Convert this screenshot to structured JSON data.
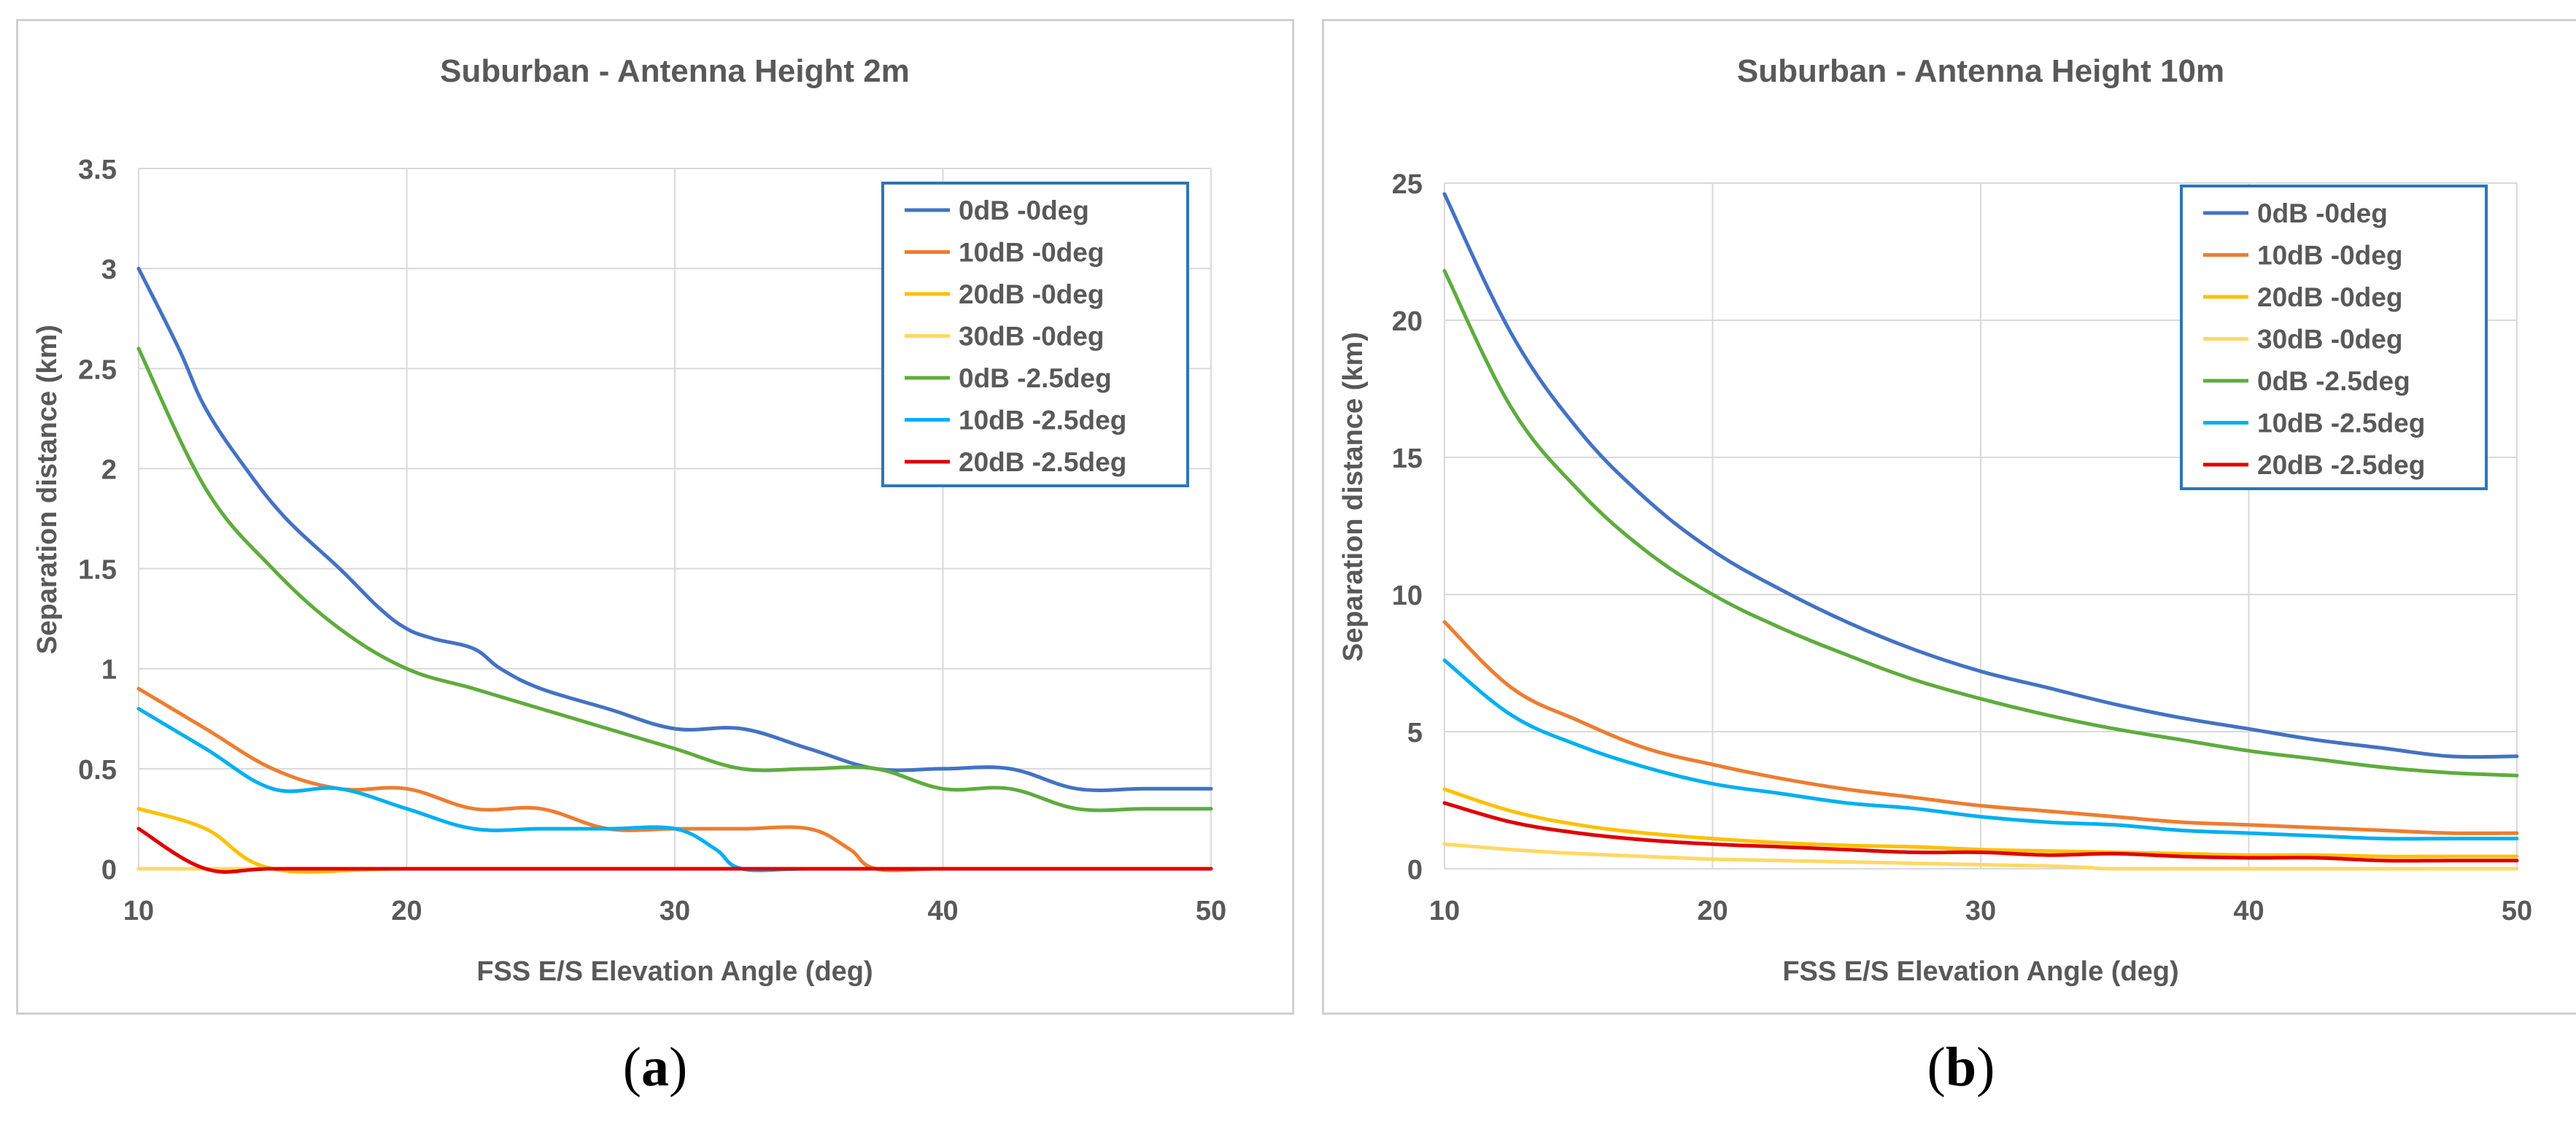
{
  "captions": {
    "a": "a",
    "b": "b"
  },
  "chart_data": [
    {
      "type": "line",
      "title": "Suburban - Antenna Height 2m",
      "xlabel": "FSS E/S Elevation Angle (deg)",
      "ylabel": "Separation distance (km)",
      "xlim": [
        10,
        50
      ],
      "ylim": [
        0,
        3.5
      ],
      "xticks": [
        10,
        20,
        30,
        40,
        50
      ],
      "yticks": [
        0,
        0.5,
        1,
        1.5,
        2,
        2.5,
        3,
        3.5
      ],
      "ytick_labels": [
        "0",
        "0.5",
        "1",
        "1.5",
        "2",
        "2.5",
        "3",
        "3.5"
      ],
      "grid": true,
      "legend_position": "top-right",
      "series": [
        {
          "name": "0dB -0deg",
          "color": "#4472C4",
          "x": [
            10,
            11.5,
            12.5,
            14,
            15.5,
            17.5,
            19,
            20,
            21,
            22.5,
            23.5,
            25,
            27.5,
            30,
            32.5,
            35,
            37.5,
            40,
            42.5,
            45,
            47.5,
            50
          ],
          "y": [
            3.0,
            2.6,
            2.3,
            2.0,
            1.75,
            1.5,
            1.3,
            1.2,
            1.15,
            1.1,
            1.0,
            0.9,
            0.8,
            0.7,
            0.7,
            0.6,
            0.5,
            0.5,
            0.5,
            0.4,
            0.4,
            0.4
          ]
        },
        {
          "name": "10dB -0deg",
          "color": "#ED7D31",
          "x": [
            10,
            12.5,
            15,
            17.5,
            20,
            22.5,
            25,
            27.5,
            30,
            32.5,
            35,
            36.5,
            37.5,
            40,
            45,
            50
          ],
          "y": [
            0.9,
            0.7,
            0.5,
            0.4,
            0.4,
            0.3,
            0.3,
            0.2,
            0.2,
            0.2,
            0.2,
            0.1,
            0.0,
            0.0,
            0.0,
            0.0
          ]
        },
        {
          "name": "20dB -0deg",
          "color": "#FFC000",
          "x": [
            10,
            12.5,
            15,
            20,
            30,
            40,
            50
          ],
          "y": [
            0.3,
            0.2,
            0.0,
            0.0,
            0.0,
            0.0,
            0.0
          ]
        },
        {
          "name": "30dB -0deg",
          "color": "#FFD966",
          "x": [
            10,
            20,
            30,
            40,
            50
          ],
          "y": [
            0.0,
            0.0,
            0.0,
            0.0,
            0.0
          ]
        },
        {
          "name": "0dB -2.5deg",
          "color": "#5EAC3E",
          "x": [
            10,
            12.5,
            15,
            17.5,
            20,
            22.5,
            25,
            27.5,
            30,
            32.5,
            35,
            37.5,
            40,
            42.5,
            45,
            47.5,
            50
          ],
          "y": [
            2.6,
            1.9,
            1.5,
            1.2,
            1.0,
            0.9,
            0.8,
            0.7,
            0.6,
            0.5,
            0.5,
            0.5,
            0.4,
            0.4,
            0.3,
            0.3,
            0.3
          ]
        },
        {
          "name": "10dB -2.5deg",
          "color": "#00B0F0",
          "x": [
            10,
            12.5,
            15,
            17.5,
            20,
            22.5,
            25,
            27.5,
            30,
            31.5,
            32.5,
            35,
            40,
            50
          ],
          "y": [
            0.8,
            0.6,
            0.4,
            0.4,
            0.3,
            0.2,
            0.2,
            0.2,
            0.2,
            0.1,
            0.0,
            0.0,
            0.0,
            0.0
          ]
        },
        {
          "name": "20dB -2.5deg",
          "color": "#E00000",
          "x": [
            10,
            12.5,
            15,
            20,
            30,
            40,
            50
          ],
          "y": [
            0.2,
            0.0,
            0.0,
            0.0,
            0.0,
            0.0,
            0.0
          ]
        }
      ]
    },
    {
      "type": "line",
      "title": "Suburban - Antenna Height 10m",
      "xlabel": "FSS E/S Elevation Angle (deg)",
      "ylabel": "Separation distance (km)",
      "xlim": [
        10,
        50
      ],
      "ylim": [
        0,
        25
      ],
      "xticks": [
        10,
        20,
        30,
        40,
        50
      ],
      "yticks": [
        0,
        5,
        10,
        15,
        20,
        25
      ],
      "ytick_labels": [
        "0",
        "5",
        "10",
        "15",
        "20",
        "25"
      ],
      "grid": true,
      "legend_position": "top-right",
      "series": [
        {
          "name": "0dB -0deg",
          "color": "#4472C4",
          "x": [
            10,
            12.5,
            15,
            17.5,
            20,
            22.5,
            25,
            27.5,
            30,
            32.5,
            35,
            37.5,
            40,
            42.5,
            45,
            47.5,
            50
          ],
          "y": [
            24.6,
            19.5,
            16.0,
            13.5,
            11.6,
            10.2,
            9.0,
            8.0,
            7.2,
            6.6,
            6.0,
            5.5,
            5.1,
            4.7,
            4.4,
            4.1,
            4.1
          ]
        },
        {
          "name": "10dB -0deg",
          "color": "#ED7D31",
          "x": [
            10,
            12.5,
            15,
            17.5,
            20,
            22.5,
            25,
            27.5,
            30,
            32.5,
            35,
            37.5,
            40,
            42.5,
            45,
            47.5,
            50
          ],
          "y": [
            9.0,
            6.6,
            5.4,
            4.4,
            3.8,
            3.3,
            2.9,
            2.6,
            2.3,
            2.1,
            1.9,
            1.7,
            1.6,
            1.5,
            1.4,
            1.3,
            1.3
          ]
        },
        {
          "name": "20dB -0deg",
          "color": "#FFC000",
          "x": [
            10,
            12.5,
            15,
            17.5,
            20,
            22.5,
            25,
            27.5,
            30,
            32.5,
            35,
            37.5,
            40,
            42.5,
            45,
            47.5,
            50
          ],
          "y": [
            2.9,
            2.1,
            1.6,
            1.3,
            1.1,
            0.95,
            0.85,
            0.8,
            0.7,
            0.65,
            0.6,
            0.55,
            0.5,
            0.5,
            0.45,
            0.45,
            0.45
          ]
        },
        {
          "name": "30dB -0deg",
          "color": "#FFD966",
          "x": [
            10,
            12.5,
            15,
            17.5,
            20,
            22.5,
            25,
            27.5,
            30,
            32.5,
            34,
            35,
            40,
            50
          ],
          "y": [
            0.9,
            0.7,
            0.55,
            0.45,
            0.35,
            0.3,
            0.25,
            0.2,
            0.15,
            0.1,
            0.05,
            0.0,
            0.0,
            0.0
          ]
        },
        {
          "name": "0dB -2.5deg",
          "color": "#5EAC3E",
          "x": [
            10,
            12.5,
            15,
            17.5,
            20,
            22.5,
            25,
            27.5,
            30,
            32.5,
            35,
            37.5,
            40,
            42.5,
            45,
            47.5,
            50
          ],
          "y": [
            21.8,
            16.8,
            13.8,
            11.6,
            10.0,
            8.8,
            7.8,
            6.9,
            6.2,
            5.6,
            5.1,
            4.7,
            4.3,
            4.0,
            3.7,
            3.5,
            3.4
          ]
        },
        {
          "name": "10dB -2.5deg",
          "color": "#00B0F0",
          "x": [
            10,
            12.5,
            15,
            17.5,
            20,
            22.5,
            25,
            27.5,
            30,
            32.5,
            35,
            37.5,
            40,
            42.5,
            45,
            47.5,
            50
          ],
          "y": [
            7.6,
            5.6,
            4.5,
            3.7,
            3.1,
            2.75,
            2.4,
            2.2,
            1.9,
            1.7,
            1.6,
            1.4,
            1.3,
            1.2,
            1.1,
            1.1,
            1.1
          ]
        },
        {
          "name": "20dB -2.5deg",
          "color": "#E00000",
          "x": [
            10,
            12.5,
            15,
            17.5,
            20,
            22.5,
            25,
            27.5,
            30,
            32.5,
            35,
            37.5,
            40,
            42.5,
            45,
            47.5,
            50
          ],
          "y": [
            2.4,
            1.7,
            1.3,
            1.05,
            0.9,
            0.8,
            0.7,
            0.6,
            0.6,
            0.5,
            0.55,
            0.45,
            0.4,
            0.4,
            0.3,
            0.3,
            0.3
          ]
        }
      ]
    }
  ]
}
